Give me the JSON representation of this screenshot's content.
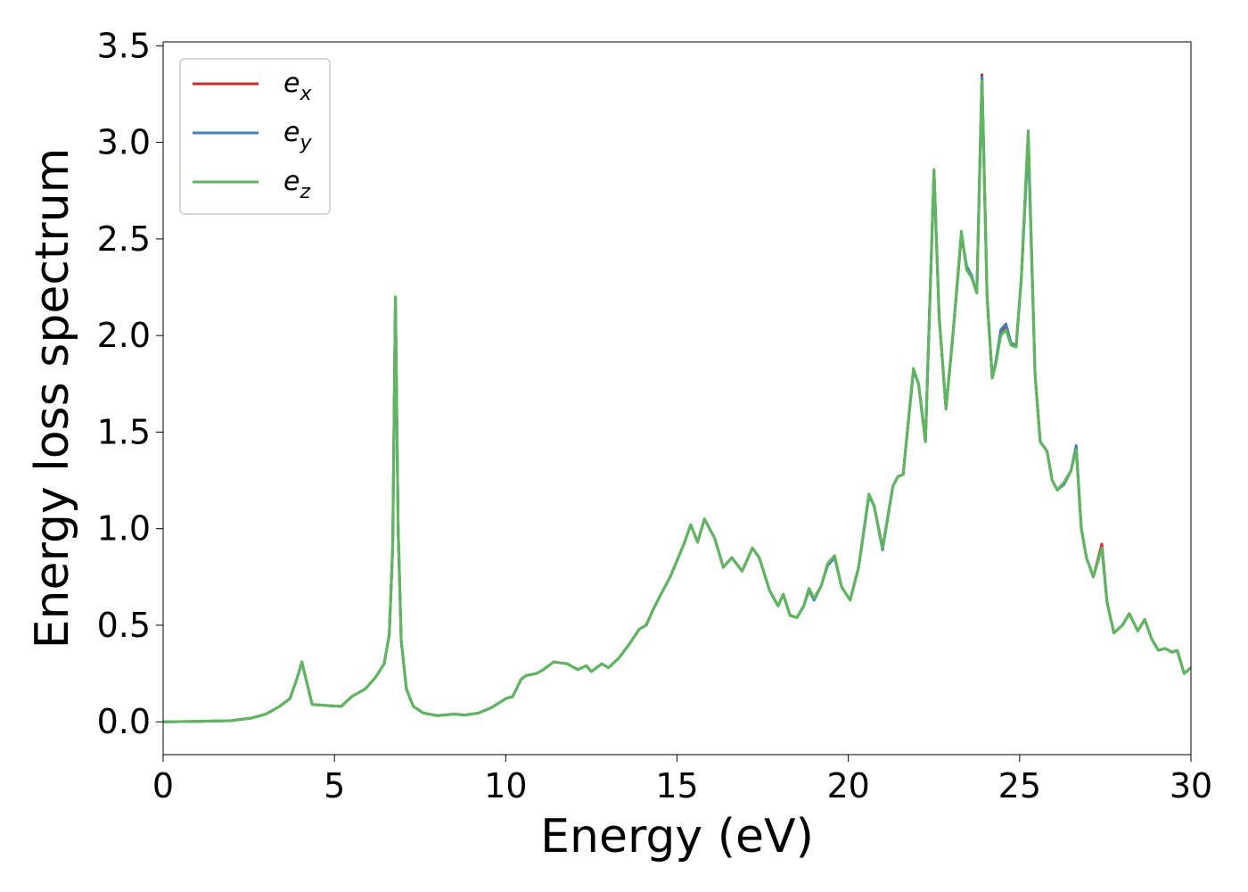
{
  "chart_data": {
    "type": "line",
    "xlabel": "Energy (eV)",
    "ylabel": "Energy loss spectrum",
    "xlim": [
      0,
      30
    ],
    "ylim": [
      -0.17,
      3.52
    ],
    "xticks": [
      0,
      5,
      10,
      15,
      20,
      25,
      30
    ],
    "xtick_labels": [
      "0",
      "5",
      "10",
      "15",
      "20",
      "25",
      "30"
    ],
    "yticks": [
      0.0,
      0.5,
      1.0,
      1.5,
      2.0,
      2.5,
      3.0,
      3.5
    ],
    "ytick_labels": [
      "0.0",
      "0.5",
      "1.0",
      "1.5",
      "2.0",
      "2.5",
      "3.0",
      "3.5"
    ],
    "grid": false,
    "legend_position": "top-left",
    "series": [
      {
        "name": "e_x",
        "label_base": "e",
        "label_sub": "x",
        "color": "#d62728",
        "x": [
          0,
          1,
          2,
          2.6,
          3.0,
          3.4,
          3.7,
          3.9,
          4.05,
          4.2,
          4.35,
          4.7,
          5.2,
          5.5,
          5.9,
          6.2,
          6.45,
          6.6,
          6.7,
          6.78,
          6.86,
          6.95,
          7.1,
          7.3,
          7.6,
          8.0,
          8.5,
          8.8,
          9.2,
          9.6,
          10.0,
          10.2,
          10.45,
          10.6,
          10.9,
          11.1,
          11.4,
          11.8,
          12.1,
          12.35,
          12.5,
          12.8,
          13.0,
          13.3,
          13.6,
          13.9,
          14.1,
          14.3,
          14.5,
          14.8,
          15.2,
          15.4,
          15.6,
          15.8,
          16.1,
          16.35,
          16.6,
          16.9,
          17.2,
          17.4,
          17.7,
          17.95,
          18.1,
          18.3,
          18.5,
          18.7,
          18.85,
          19.0,
          19.2,
          19.4,
          19.6,
          19.8,
          20.05,
          20.3,
          20.6,
          20.75,
          21.0,
          21.3,
          21.45,
          21.6,
          21.9,
          22.05,
          22.25,
          22.5,
          22.65,
          22.85,
          23.05,
          23.3,
          23.45,
          23.6,
          23.75,
          23.9,
          24.05,
          24.2,
          24.3,
          24.45,
          24.6,
          24.75,
          24.9,
          25.05,
          25.25,
          25.45,
          25.6,
          25.8,
          25.95,
          26.1,
          26.3,
          26.5,
          26.65,
          26.8,
          26.95,
          27.15,
          27.4,
          27.55,
          27.75,
          28.0,
          28.2,
          28.45,
          28.65,
          28.85,
          29.05,
          29.25,
          29.45,
          29.6,
          29.8,
          30.0
        ],
        "y": [
          0.0,
          0.002,
          0.006,
          0.02,
          0.04,
          0.08,
          0.12,
          0.22,
          0.31,
          0.2,
          0.09,
          0.085,
          0.08,
          0.13,
          0.17,
          0.23,
          0.3,
          0.45,
          0.9,
          2.2,
          1.0,
          0.42,
          0.17,
          0.08,
          0.045,
          0.032,
          0.04,
          0.035,
          0.045,
          0.075,
          0.12,
          0.13,
          0.22,
          0.24,
          0.25,
          0.27,
          0.31,
          0.3,
          0.27,
          0.29,
          0.26,
          0.3,
          0.28,
          0.33,
          0.4,
          0.48,
          0.5,
          0.58,
          0.65,
          0.75,
          0.92,
          1.02,
          0.93,
          1.05,
          0.95,
          0.8,
          0.85,
          0.78,
          0.9,
          0.85,
          0.68,
          0.6,
          0.66,
          0.55,
          0.54,
          0.6,
          0.69,
          0.64,
          0.7,
          0.82,
          0.86,
          0.7,
          0.63,
          0.8,
          1.17,
          1.12,
          0.9,
          1.22,
          1.27,
          1.28,
          1.82,
          1.75,
          1.45,
          2.85,
          2.1,
          1.62,
          2.0,
          2.52,
          2.35,
          2.3,
          2.22,
          3.35,
          2.2,
          1.78,
          1.85,
          2.02,
          2.05,
          1.95,
          1.95,
          2.3,
          3.05,
          1.8,
          1.45,
          1.4,
          1.25,
          1.2,
          1.24,
          1.3,
          1.42,
          1.0,
          0.85,
          0.75,
          0.92,
          0.62,
          0.46,
          0.5,
          0.56,
          0.47,
          0.53,
          0.43,
          0.37,
          0.38,
          0.36,
          0.37,
          0.25,
          0.28
        ]
      },
      {
        "name": "e_y",
        "label_base": "e",
        "label_sub": "y",
        "color": "#3d7fc0",
        "x": [
          0,
          1,
          2,
          2.6,
          3.0,
          3.4,
          3.7,
          3.9,
          4.05,
          4.2,
          4.35,
          4.7,
          5.2,
          5.5,
          5.9,
          6.2,
          6.45,
          6.6,
          6.7,
          6.78,
          6.86,
          6.95,
          7.1,
          7.3,
          7.6,
          8.0,
          8.5,
          8.8,
          9.2,
          9.6,
          10.0,
          10.2,
          10.45,
          10.6,
          10.9,
          11.1,
          11.4,
          11.8,
          12.1,
          12.35,
          12.5,
          12.8,
          13.0,
          13.3,
          13.6,
          13.9,
          14.1,
          14.3,
          14.5,
          14.8,
          15.2,
          15.4,
          15.6,
          15.8,
          16.1,
          16.35,
          16.6,
          16.9,
          17.2,
          17.4,
          17.7,
          17.95,
          18.1,
          18.3,
          18.5,
          18.7,
          18.85,
          19.0,
          19.2,
          19.4,
          19.6,
          19.8,
          20.05,
          20.3,
          20.6,
          20.75,
          21.0,
          21.3,
          21.45,
          21.6,
          21.9,
          22.05,
          22.25,
          22.5,
          22.65,
          22.85,
          23.05,
          23.3,
          23.45,
          23.6,
          23.75,
          23.9,
          24.05,
          24.2,
          24.3,
          24.45,
          24.6,
          24.75,
          24.9,
          25.05,
          25.25,
          25.45,
          25.6,
          25.8,
          25.95,
          26.1,
          26.3,
          26.5,
          26.65,
          26.8,
          26.95,
          27.15,
          27.4,
          27.55,
          27.75,
          28.0,
          28.2,
          28.45,
          28.65,
          28.85,
          29.05,
          29.25,
          29.45,
          29.6,
          29.8,
          30.0
        ],
        "y": [
          0.0,
          0.002,
          0.006,
          0.02,
          0.04,
          0.08,
          0.12,
          0.22,
          0.31,
          0.2,
          0.09,
          0.085,
          0.08,
          0.13,
          0.17,
          0.23,
          0.3,
          0.45,
          0.9,
          2.2,
          1.0,
          0.42,
          0.17,
          0.08,
          0.045,
          0.032,
          0.04,
          0.035,
          0.045,
          0.075,
          0.12,
          0.13,
          0.22,
          0.24,
          0.25,
          0.27,
          0.31,
          0.3,
          0.27,
          0.29,
          0.26,
          0.3,
          0.28,
          0.33,
          0.4,
          0.48,
          0.5,
          0.58,
          0.65,
          0.75,
          0.92,
          1.02,
          0.93,
          1.05,
          0.95,
          0.8,
          0.85,
          0.78,
          0.9,
          0.85,
          0.68,
          0.6,
          0.66,
          0.55,
          0.54,
          0.6,
          0.68,
          0.63,
          0.7,
          0.81,
          0.85,
          0.7,
          0.63,
          0.8,
          1.17,
          1.12,
          0.89,
          1.22,
          1.27,
          1.28,
          1.82,
          1.75,
          1.45,
          2.85,
          2.1,
          1.62,
          2.0,
          2.53,
          2.36,
          2.31,
          2.22,
          3.34,
          2.2,
          1.78,
          1.86,
          2.03,
          2.06,
          1.96,
          1.95,
          2.3,
          3.0,
          1.8,
          1.45,
          1.4,
          1.25,
          1.2,
          1.23,
          1.3,
          1.43,
          1.0,
          0.85,
          0.75,
          0.9,
          0.62,
          0.46,
          0.5,
          0.56,
          0.47,
          0.53,
          0.43,
          0.37,
          0.38,
          0.36,
          0.37,
          0.25,
          0.28
        ]
      },
      {
        "name": "e_z",
        "label_base": "e",
        "label_sub": "z",
        "color": "#5cb85c",
        "x": [
          0,
          1,
          2,
          2.6,
          3.0,
          3.4,
          3.7,
          3.9,
          4.05,
          4.2,
          4.35,
          4.7,
          5.2,
          5.5,
          5.9,
          6.2,
          6.45,
          6.6,
          6.7,
          6.78,
          6.86,
          6.95,
          7.1,
          7.3,
          7.6,
          8.0,
          8.5,
          8.8,
          9.2,
          9.6,
          10.0,
          10.2,
          10.45,
          10.6,
          10.9,
          11.1,
          11.4,
          11.8,
          12.1,
          12.35,
          12.5,
          12.8,
          13.0,
          13.3,
          13.6,
          13.9,
          14.1,
          14.3,
          14.5,
          14.8,
          15.2,
          15.4,
          15.6,
          15.8,
          16.1,
          16.35,
          16.6,
          16.9,
          17.2,
          17.4,
          17.7,
          17.95,
          18.1,
          18.3,
          18.5,
          18.7,
          18.85,
          19.0,
          19.2,
          19.4,
          19.6,
          19.8,
          20.05,
          20.3,
          20.6,
          20.75,
          21.0,
          21.3,
          21.45,
          21.6,
          21.9,
          22.05,
          22.25,
          22.5,
          22.65,
          22.85,
          23.05,
          23.3,
          23.45,
          23.6,
          23.75,
          23.9,
          24.05,
          24.2,
          24.3,
          24.45,
          24.6,
          24.75,
          24.9,
          25.05,
          25.25,
          25.45,
          25.6,
          25.8,
          25.95,
          26.1,
          26.3,
          26.5,
          26.65,
          26.8,
          26.95,
          27.15,
          27.4,
          27.55,
          27.75,
          28.0,
          28.2,
          28.45,
          28.65,
          28.85,
          29.05,
          29.25,
          29.45,
          29.6,
          29.8,
          30.0
        ],
        "y": [
          0.0,
          0.002,
          0.006,
          0.02,
          0.04,
          0.08,
          0.12,
          0.22,
          0.31,
          0.2,
          0.09,
          0.085,
          0.08,
          0.13,
          0.17,
          0.23,
          0.3,
          0.45,
          0.9,
          2.2,
          1.0,
          0.42,
          0.17,
          0.08,
          0.045,
          0.032,
          0.04,
          0.035,
          0.045,
          0.075,
          0.12,
          0.13,
          0.22,
          0.24,
          0.25,
          0.27,
          0.31,
          0.3,
          0.27,
          0.29,
          0.26,
          0.3,
          0.28,
          0.33,
          0.4,
          0.48,
          0.5,
          0.58,
          0.65,
          0.75,
          0.92,
          1.02,
          0.93,
          1.05,
          0.95,
          0.8,
          0.85,
          0.78,
          0.9,
          0.85,
          0.68,
          0.6,
          0.66,
          0.55,
          0.54,
          0.6,
          0.69,
          0.64,
          0.7,
          0.82,
          0.86,
          0.7,
          0.63,
          0.8,
          1.18,
          1.12,
          0.9,
          1.22,
          1.27,
          1.28,
          1.83,
          1.75,
          1.45,
          2.86,
          2.1,
          1.62,
          2.0,
          2.54,
          2.34,
          2.3,
          2.22,
          3.32,
          2.2,
          1.78,
          1.85,
          2.0,
          2.03,
          1.95,
          1.94,
          2.3,
          3.06,
          1.8,
          1.45,
          1.4,
          1.25,
          1.2,
          1.24,
          1.3,
          1.41,
          1.0,
          0.85,
          0.75,
          0.9,
          0.62,
          0.46,
          0.5,
          0.56,
          0.47,
          0.53,
          0.43,
          0.37,
          0.38,
          0.36,
          0.37,
          0.25,
          0.28
        ]
      }
    ]
  }
}
